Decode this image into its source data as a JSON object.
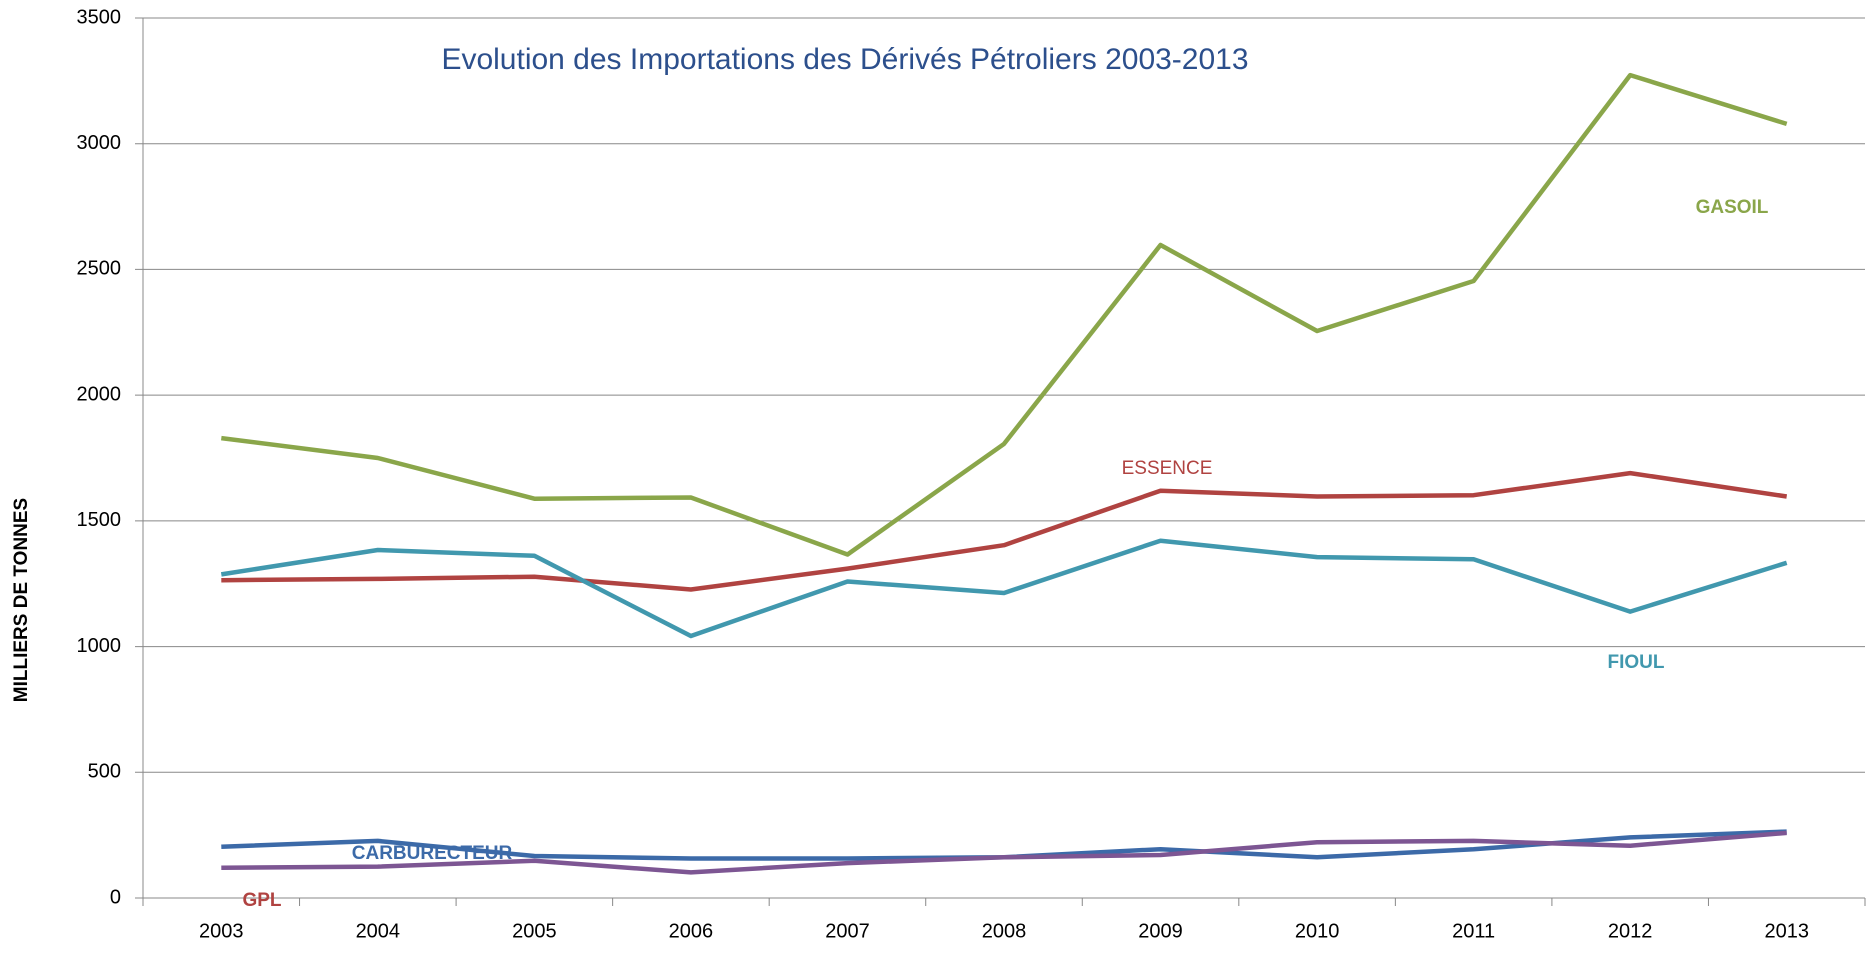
{
  "chart_data": {
    "type": "line",
    "title": "Evolution des Importations des Dérivés Pétroliers 2003-2013",
    "y_label": "MILLIERS DE TONNES",
    "categories": [
      "2003",
      "2004",
      "2005",
      "2006",
      "2007",
      "2008",
      "2009",
      "2010",
      "2011",
      "2012",
      "2013"
    ],
    "series": [
      {
        "name": "GASOIL",
        "color": "#8aa64a",
        "values": [
          1829,
          1750,
          1588,
          1593,
          1366,
          1806,
          2597,
          2255,
          2454,
          3273,
          3079
        ]
      },
      {
        "name": "ESSENCE",
        "color": "#b04341",
        "values": [
          1264,
          1269,
          1278,
          1227,
          1310,
          1403,
          1620,
          1597,
          1602,
          1690,
          1597
        ]
      },
      {
        "name": "FIOUL",
        "color": "#4198ae",
        "values": [
          1287,
          1384,
          1361,
          1042,
          1259,
          1213,
          1421,
          1356,
          1347,
          1139,
          1333
        ]
      },
      {
        "name": "CARBURECTEUR",
        "color": "#3c6aa8",
        "values": [
          204,
          227,
          167,
          157,
          157,
          162,
          194,
          162,
          194,
          241,
          264
        ]
      },
      {
        "name": "GPL",
        "color": "#7d5693",
        "values": [
          120,
          125,
          148,
          102,
          139,
          162,
          171,
          222,
          227,
          208,
          259
        ]
      }
    ],
    "ylim": [
      0,
      3500
    ],
    "yticks": [
      0,
      500,
      1000,
      1500,
      2000,
      2500,
      3000,
      3500
    ],
    "grid": true
  }
}
